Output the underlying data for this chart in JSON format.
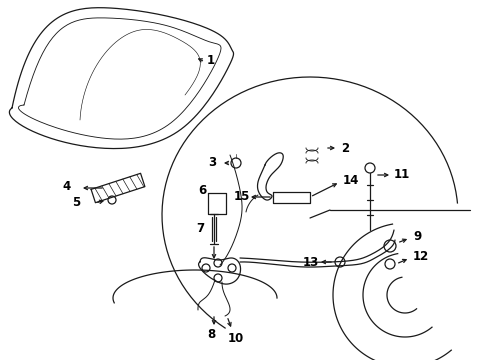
{
  "bg_color": "#ffffff",
  "line_color": "#1a1a1a",
  "label_color": "#000000",
  "fig_width": 4.89,
  "fig_height": 3.6,
  "dpi": 100,
  "lw": 0.9,
  "fs": 8.5
}
